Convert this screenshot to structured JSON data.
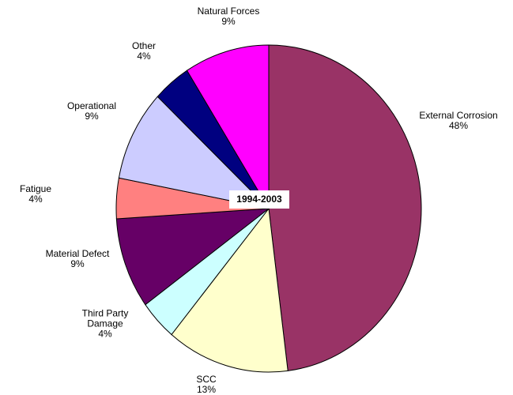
{
  "chart_data": {
    "type": "pie",
    "title": "1994-2003",
    "categories": [
      "External Corrosion",
      "SCC",
      "Third Party Damage",
      "Material Defect",
      "Fatigue",
      "Operational",
      "Other",
      "Natural Forces"
    ],
    "values": [
      48,
      13,
      4,
      9,
      4,
      9,
      4,
      9
    ],
    "value_labels": [
      "48%",
      "13%",
      "4%",
      "9%",
      "4%",
      "9%",
      "4%",
      "9%"
    ],
    "colors": [
      "#993366",
      "#ffffcc",
      "#ccffff",
      "#660066",
      "#ff8080",
      "#ccccff",
      "#000080",
      "#ff00ff"
    ]
  }
}
